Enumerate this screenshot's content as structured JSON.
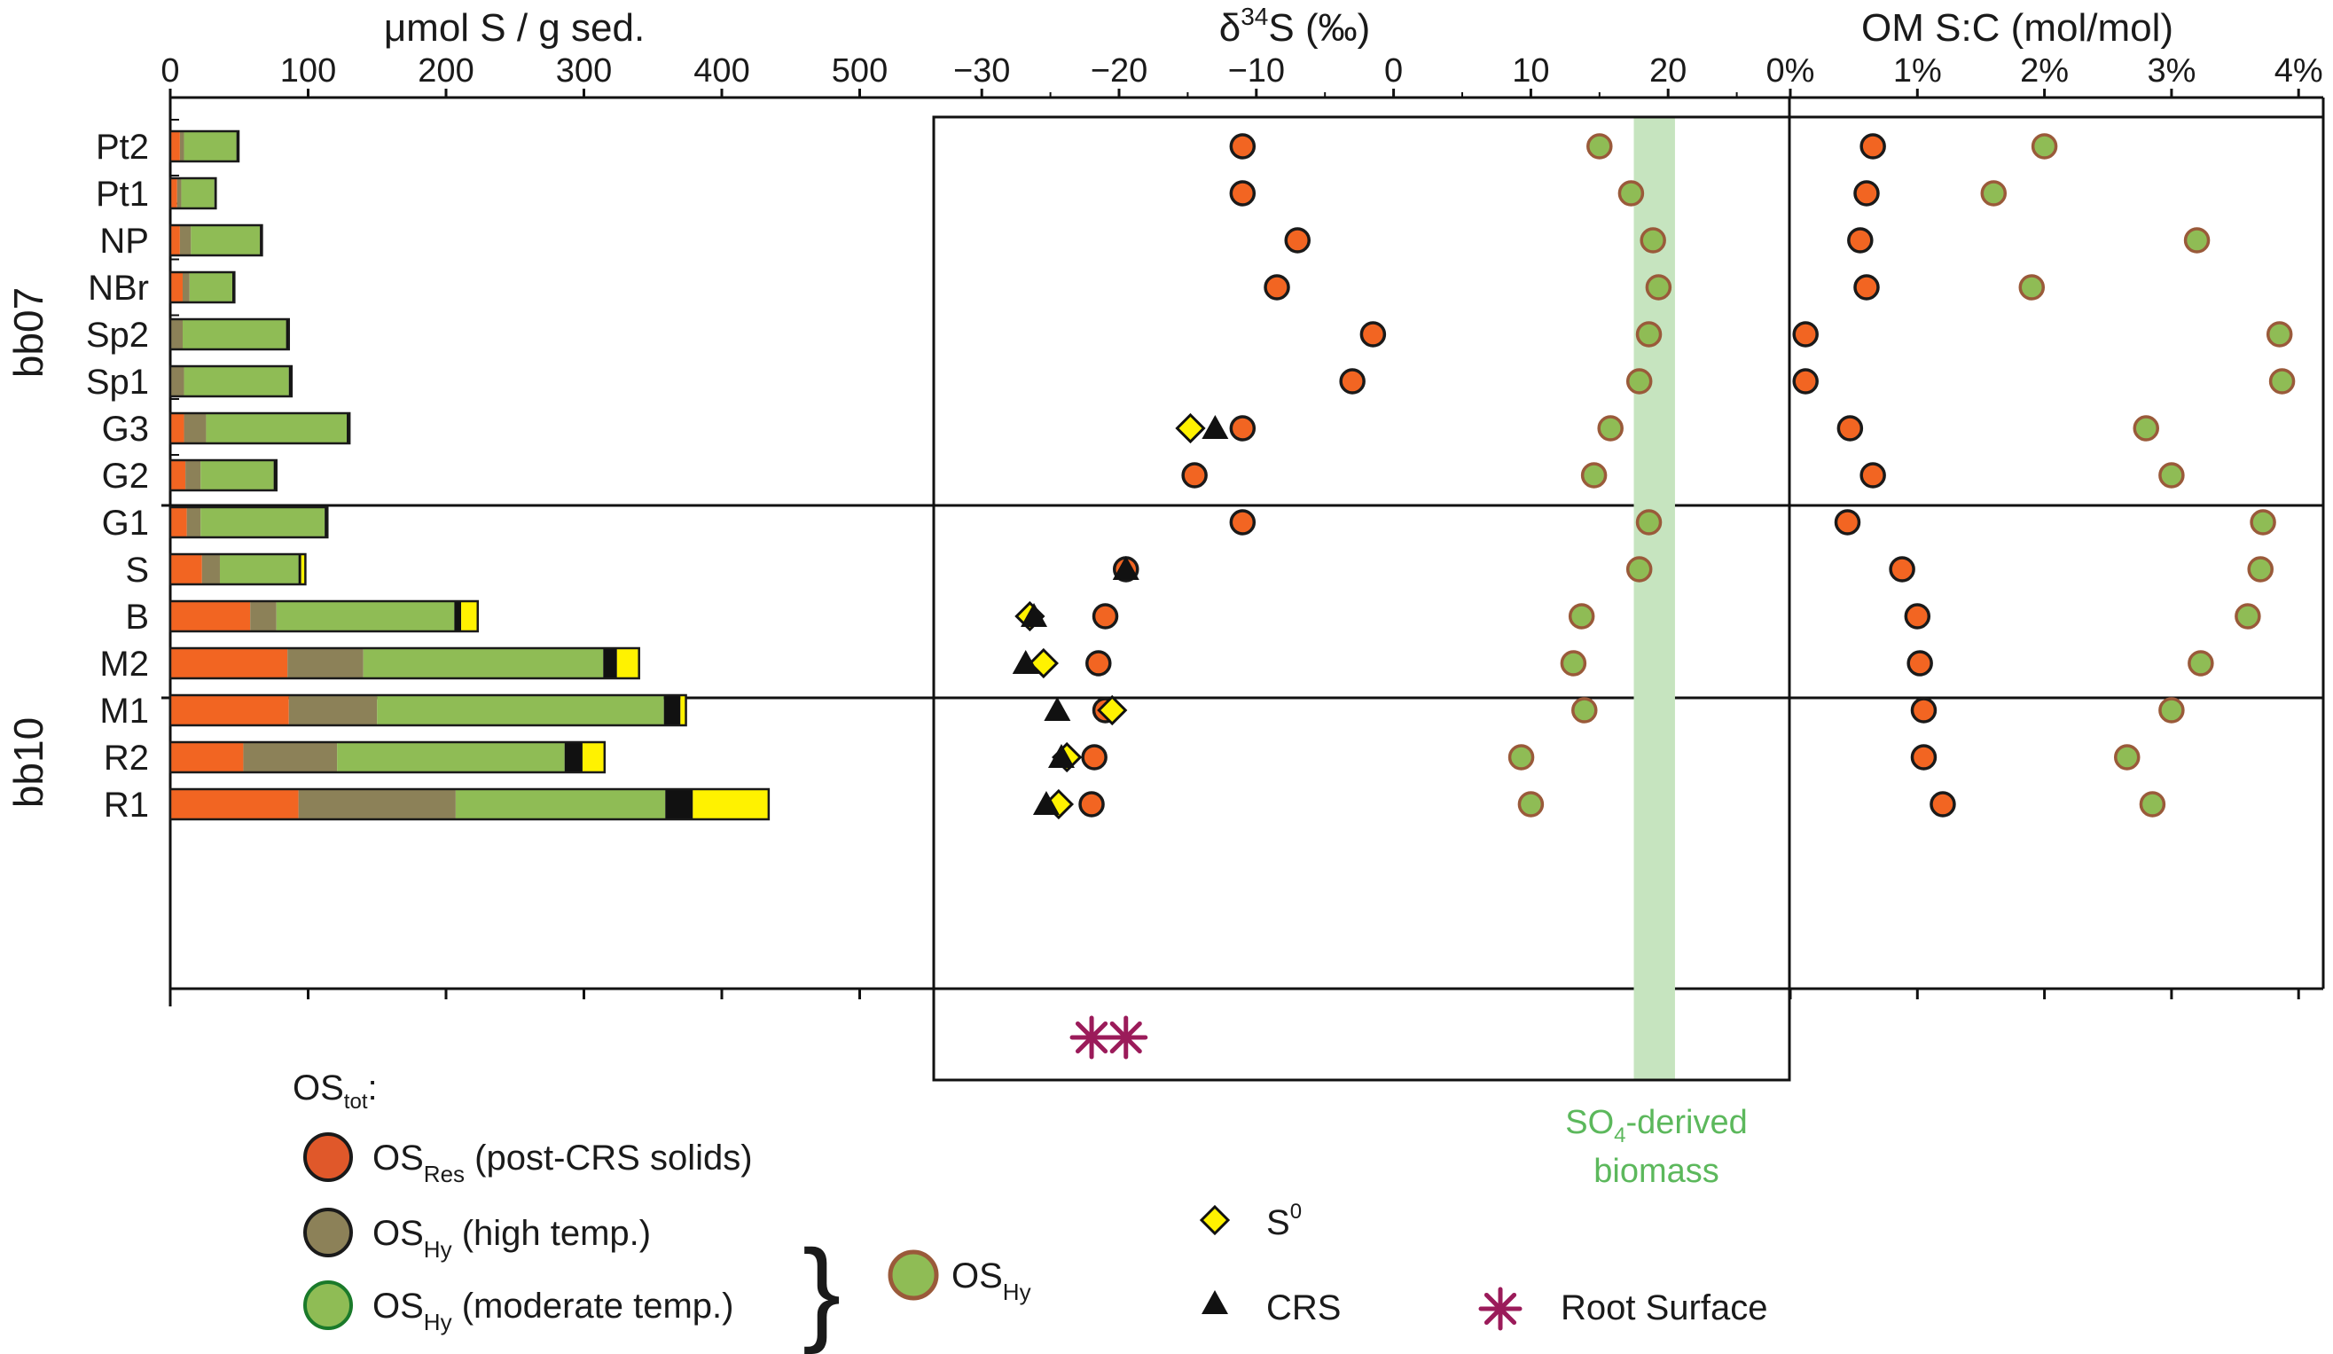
{
  "chart_data": {
    "type": "scatter",
    "groups": [
      {
        "name": "bb07",
        "samples": [
          "Pt2",
          "Pt1",
          "NP",
          "NBr",
          "Sp2",
          "Sp1"
        ]
      },
      {
        "name": "bb10",
        "samples": [
          "G3",
          "G2",
          "G1",
          "S",
          "B",
          "M2",
          "M1",
          "R2",
          "R1"
        ]
      }
    ],
    "panels": [
      {
        "id": "concentration",
        "type": "stacked-bar",
        "title": "μmol S / g sed.",
        "xlim": [
          0,
          550
        ],
        "ticks": [
          0,
          100,
          200,
          300,
          400,
          500
        ],
        "tick_labels": [
          "0",
          "100",
          "200",
          "300",
          "400",
          "500"
        ],
        "series_order": [
          "OS_Res",
          "OS_Hy_high",
          "OS_Hy_moderate",
          "CRS",
          "S0"
        ],
        "series_colors": {
          "OS_Res": "#f26522",
          "OS_Hy_high": "#8c8158",
          "OS_Hy_moderate": "#8fbc55",
          "CRS": "#111111",
          "S0": "#fff200"
        },
        "bars": {
          "Pt2": [
            7,
            3,
            38,
            1.5,
            0
          ],
          "Pt1": [
            5,
            3,
            24,
            1,
            0
          ],
          "NP": [
            7,
            8,
            50,
            1.5,
            0
          ],
          "NBr": [
            9,
            5,
            31,
            1.5,
            0
          ],
          "Sp2": [
            0,
            9,
            75,
            2,
            0
          ],
          "Sp1": [
            0,
            10,
            76,
            2,
            0
          ],
          "G3": [
            10,
            16,
            102,
            2,
            0
          ],
          "G2": [
            11,
            11,
            53,
            2,
            0
          ],
          "G1": [
            12,
            10,
            90,
            2,
            0
          ],
          "S": [
            23,
            13,
            57,
            2,
            3
          ],
          "B": [
            58,
            19,
            129,
            5,
            12
          ],
          "M2": [
            85,
            55,
            174,
            10,
            16
          ],
          "M1": [
            86,
            64,
            208,
            12,
            4
          ],
          "R2": [
            53,
            68,
            165,
            13,
            16
          ],
          "R1": [
            93,
            114,
            152,
            20,
            55
          ]
        }
      },
      {
        "id": "d34s",
        "type": "scatter",
        "title": "δ³⁴S (‰)",
        "title_base": "δ",
        "title_sup": "34",
        "title_rest": "S (‰)",
        "xlim": [
          -35,
          27
        ],
        "ticks": [
          -30,
          -20,
          -10,
          0,
          10,
          20
        ],
        "tick_labels": [
          "−30",
          "−20",
          "−10",
          "0",
          "10",
          "20"
        ],
        "edge_tick": 25,
        "band": {
          "from": 17.5,
          "to": 20.5,
          "label_line1": "SO",
          "label_sub": "4",
          "label_rest": "-derived",
          "label_line2": "biomass",
          "color": "#c6e4bf",
          "label_color": "#5cb85c"
        },
        "series": [
          {
            "name": "OS_Res",
            "marker": "circle",
            "points": {
              "Pt2": -11,
              "Pt1": -11,
              "NP": -7,
              "NBr": -8.5,
              "Sp2": -1.5,
              "Sp1": -3,
              "G3": -11,
              "G2": -14.5,
              "G1": -11,
              "S": -19.5,
              "B": -21,
              "M2": -21.5,
              "M1": -21,
              "R2": -21.8,
              "R1": -22
            }
          },
          {
            "name": "OS_Hy",
            "marker": "circle",
            "points": {
              "Pt2": 15,
              "Pt1": 17.3,
              "NP": 18.9,
              "NBr": 19.3,
              "Sp2": 18.6,
              "Sp1": 17.9,
              "G3": 15.8,
              "G2": 14.6,
              "G1": 18.6,
              "S": 17.9,
              "B": 13.7,
              "M2": 13.1,
              "M1": 13.9,
              "R2": 9.3,
              "R1": 10
            }
          },
          {
            "name": "S0",
            "marker": "diamond",
            "points": {
              "G3": -14.8,
              "B": -26.5,
              "M2": -25.5,
              "M1": -20.5,
              "R2": -23.8,
              "R1": -24.4
            }
          },
          {
            "name": "CRS",
            "marker": "triangle",
            "points": {
              "G3": -13,
              "S": -19.5,
              "B": -26.2,
              "M2": -26.8,
              "M1": -24.5,
              "R2": -24.2,
              "R1": -25.3
            }
          }
        ],
        "root_surface": [
          -22,
          -19.5
        ]
      },
      {
        "id": "sc",
        "type": "scatter",
        "title": "OM S:C (mol/mol)",
        "xlim": [
          0,
          4.1
        ],
        "ticks": [
          0,
          1,
          2,
          3,
          4
        ],
        "tick_labels": [
          "0%",
          "1%",
          "2%",
          "3%",
          "4%"
        ],
        "series": [
          {
            "name": "OS_Res",
            "marker": "circle",
            "points": {
              "Pt2": 0.65,
              "Pt1": 0.6,
              "NP": 0.55,
              "NBr": 0.6,
              "Sp2": 0.12,
              "Sp1": 0.12,
              "G3": 0.47,
              "G2": 0.65,
              "G1": 0.45,
              "S": 0.88,
              "B": 1.0,
              "M2": 1.02,
              "M1": 1.05,
              "R2": 1.05,
              "R1": 1.2
            }
          },
          {
            "name": "OS_Hy",
            "marker": "circle",
            "points": {
              "Pt2": 2.0,
              "Pt1": 1.6,
              "NP": 3.2,
              "NBr": 1.9,
              "Sp2": 3.85,
              "Sp1": 3.87,
              "G3": 2.8,
              "G2": 3.0,
              "G1": 3.72,
              "S": 3.7,
              "B": 3.6,
              "M2": 3.23,
              "M1": 3.0,
              "R2": 2.65,
              "R1": 2.85
            }
          }
        ]
      }
    ],
    "legend": {
      "header_base": "OS",
      "header_sub": "tot",
      "header_tail": ":",
      "items": [
        {
          "key": "OS_Res",
          "base": "OS",
          "sub": "Res",
          "text": " (post-CRS solids)",
          "fill": "#e0582a",
          "stroke": "#1a1a1a"
        },
        {
          "key": "OS_Hy_high",
          "base": "OS",
          "sub": "Hy",
          "text": " (high temp.)",
          "fill": "#8c8158",
          "stroke": "#1a1a1a"
        },
        {
          "key": "OS_Hy_moderate",
          "base": "OS",
          "sub": "Hy",
          "text": " (moderate temp.)",
          "fill": "#8fbc55",
          "stroke": "#1a7a2a"
        }
      ],
      "combined": {
        "key": "OS_Hy",
        "base": "OS",
        "sub": "Hy",
        "fill": "#8fbc55",
        "stroke": "#9a5a3a"
      },
      "markers": [
        {
          "key": "S0",
          "base": "S",
          "sup": "0",
          "shape": "diamond"
        },
        {
          "key": "CRS",
          "label": "CRS",
          "shape": "triangle"
        },
        {
          "key": "Root",
          "label": "Root Surface",
          "shape": "asterisk",
          "color": "#9b1b5a"
        }
      ]
    }
  }
}
